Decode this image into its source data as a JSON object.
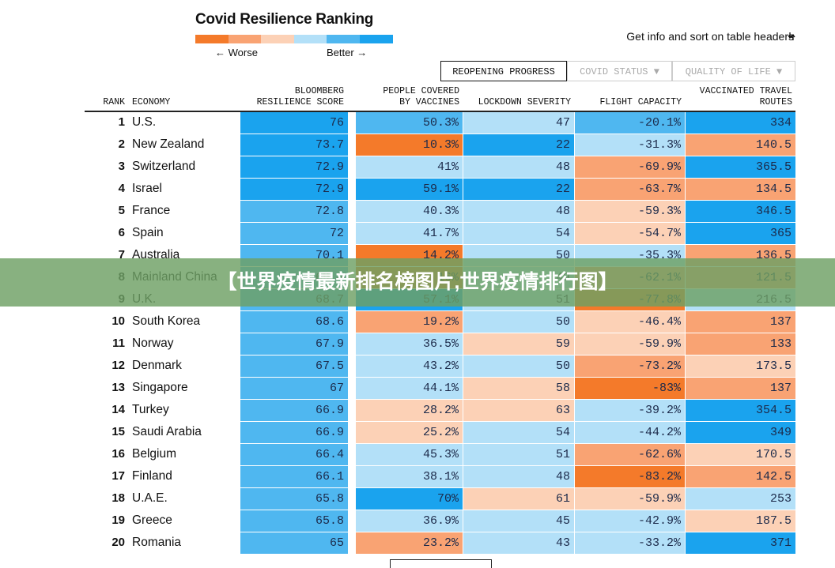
{
  "header": {
    "title": "Covid Resilience Ranking",
    "legend": {
      "colors": [
        "#f47a2a",
        "#f9a373",
        "#fcd1b6",
        "#b3e0f8",
        "#4fb7f0",
        "#1aa3ee"
      ],
      "worse": "← Worse",
      "better": "Better →"
    },
    "hint": "Get info and sort on table headers"
  },
  "tabs": [
    "REOPENING PROGRESS",
    "COVID STATUS ▼",
    "QUALITY OF LIFE ▼"
  ],
  "table": {
    "headers": [
      "RANK",
      "ECONOMY",
      "BLOOMBERG\nRESILIENCE SCORE",
      "PEOPLE COVERED\nBY VACCINES",
      "LOCKDOWN SEVERITY",
      "FLIGHT CAPACITY",
      "VACCINATED TRAVEL\nROUTES"
    ],
    "rows": [
      {
        "rank": "1",
        "economy": "U.S.",
        "cells": [
          "76",
          "50.3%",
          "47",
          "-20.1%",
          "334"
        ],
        "fills": [
          "#1aa3ee",
          "#4fb7f0",
          "#b3e0f8",
          "#4fb7f0",
          "#1aa3ee"
        ]
      },
      {
        "rank": "2",
        "economy": "New Zealand",
        "cells": [
          "73.7",
          "10.3%",
          "22",
          "-31.3%",
          "140.5"
        ],
        "fills": [
          "#1aa3ee",
          "#f47a2a",
          "#1aa3ee",
          "#b3e0f8",
          "#f9a373"
        ]
      },
      {
        "rank": "3",
        "economy": "Switzerland",
        "cells": [
          "72.9",
          "41%",
          "48",
          "-69.9%",
          "365.5"
        ],
        "fills": [
          "#1aa3ee",
          "#b3e0f8",
          "#b3e0f8",
          "#f9a373",
          "#1aa3ee"
        ]
      },
      {
        "rank": "4",
        "economy": "Israel",
        "cells": [
          "72.9",
          "59.1%",
          "22",
          "-63.7%",
          "134.5"
        ],
        "fills": [
          "#1aa3ee",
          "#1aa3ee",
          "#1aa3ee",
          "#f9a373",
          "#f9a373"
        ]
      },
      {
        "rank": "5",
        "economy": "France",
        "cells": [
          "72.8",
          "40.3%",
          "48",
          "-59.3%",
          "346.5"
        ],
        "fills": [
          "#4fb7f0",
          "#b3e0f8",
          "#b3e0f8",
          "#fcd1b6",
          "#1aa3ee"
        ]
      },
      {
        "rank": "6",
        "economy": "Spain",
        "cells": [
          "72",
          "41.7%",
          "54",
          "-54.7%",
          "365"
        ],
        "fills": [
          "#4fb7f0",
          "#b3e0f8",
          "#b3e0f8",
          "#fcd1b6",
          "#1aa3ee"
        ]
      },
      {
        "rank": "7",
        "economy": "Australia",
        "cells": [
          "70.1",
          "14.2%",
          "50",
          "-35.3%",
          "136.5"
        ],
        "fills": [
          "#4fb7f0",
          "#f47a2a",
          "#b3e0f8",
          "#b3e0f8",
          "#f9a373"
        ]
      },
      {
        "rank": "8",
        "economy": "Mainland China",
        "cells": [
          "69.4",
          "16%",
          "49",
          "-62.1%",
          "121.5"
        ],
        "fills": [
          "#4fb7f0",
          "#f47a2a",
          "#b3e0f8",
          "#f9a373",
          "#f9a373"
        ]
      },
      {
        "rank": "9",
        "economy": "U.K.",
        "cells": [
          "68.7",
          "57.1%",
          "51",
          "-77.8%",
          "216.5"
        ],
        "fills": [
          "#4fb7f0",
          "#1aa3ee",
          "#b3e0f8",
          "#f47a2a",
          "#b3e0f8"
        ]
      },
      {
        "rank": "10",
        "economy": "South Korea",
        "cells": [
          "68.6",
          "19.2%",
          "50",
          "-46.4%",
          "137"
        ],
        "fills": [
          "#4fb7f0",
          "#f9a373",
          "#b3e0f8",
          "#fcd1b6",
          "#f9a373"
        ]
      },
      {
        "rank": "11",
        "economy": "Norway",
        "cells": [
          "67.9",
          "36.5%",
          "59",
          "-59.9%",
          "133"
        ],
        "fills": [
          "#4fb7f0",
          "#b3e0f8",
          "#fcd1b6",
          "#fcd1b6",
          "#f9a373"
        ]
      },
      {
        "rank": "12",
        "economy": "Denmark",
        "cells": [
          "67.5",
          "43.2%",
          "50",
          "-73.2%",
          "173.5"
        ],
        "fills": [
          "#4fb7f0",
          "#b3e0f8",
          "#b3e0f8",
          "#f9a373",
          "#fcd1b6"
        ]
      },
      {
        "rank": "13",
        "economy": "Singapore",
        "cells": [
          "67",
          "44.1%",
          "58",
          "-83%",
          "137"
        ],
        "fills": [
          "#4fb7f0",
          "#b3e0f8",
          "#fcd1b6",
          "#f47a2a",
          "#f9a373"
        ]
      },
      {
        "rank": "14",
        "economy": "Turkey",
        "cells": [
          "66.9",
          "28.2%",
          "63",
          "-39.2%",
          "354.5"
        ],
        "fills": [
          "#4fb7f0",
          "#fcd1b6",
          "#fcd1b6",
          "#b3e0f8",
          "#1aa3ee"
        ]
      },
      {
        "rank": "15",
        "economy": "Saudi Arabia",
        "cells": [
          "66.9",
          "25.2%",
          "54",
          "-44.2%",
          "349"
        ],
        "fills": [
          "#4fb7f0",
          "#fcd1b6",
          "#b3e0f8",
          "#b3e0f8",
          "#1aa3ee"
        ]
      },
      {
        "rank": "16",
        "economy": "Belgium",
        "cells": [
          "66.4",
          "45.3%",
          "51",
          "-62.6%",
          "170.5"
        ],
        "fills": [
          "#4fb7f0",
          "#b3e0f8",
          "#b3e0f8",
          "#f9a373",
          "#fcd1b6"
        ]
      },
      {
        "rank": "17",
        "economy": "Finland",
        "cells": [
          "66.1",
          "38.1%",
          "48",
          "-83.2%",
          "142.5"
        ],
        "fills": [
          "#4fb7f0",
          "#b3e0f8",
          "#b3e0f8",
          "#f47a2a",
          "#f9a373"
        ]
      },
      {
        "rank": "18",
        "economy": "U.A.E.",
        "cells": [
          "65.8",
          "70%",
          "61",
          "-59.9%",
          "253"
        ],
        "fills": [
          "#4fb7f0",
          "#1aa3ee",
          "#fcd1b6",
          "#fcd1b6",
          "#b3e0f8"
        ]
      },
      {
        "rank": "19",
        "economy": "Greece",
        "cells": [
          "65.8",
          "36.9%",
          "45",
          "-42.9%",
          "187.5"
        ],
        "fills": [
          "#4fb7f0",
          "#b3e0f8",
          "#b3e0f8",
          "#b3e0f8",
          "#fcd1b6"
        ]
      },
      {
        "rank": "20",
        "economy": "Romania",
        "cells": [
          "65",
          "23.2%",
          "43",
          "-33.2%",
          "371"
        ],
        "fills": [
          "#4fb7f0",
          "#f9a373",
          "#b3e0f8",
          "#b3e0f8",
          "#1aa3ee"
        ]
      }
    ]
  },
  "banner": "【世界疫情最新排名榜图片,世界疫情排行图】"
}
